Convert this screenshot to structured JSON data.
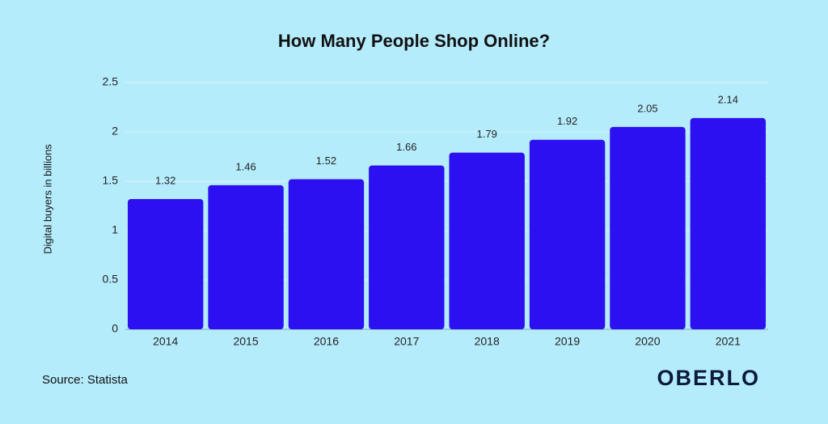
{
  "chart_data": {
    "type": "bar",
    "title": "How Many People Shop Online?",
    "y_label": "Digital buyers in billions",
    "categories": [
      "2014",
      "2015",
      "2016",
      "2017",
      "2018",
      "2019",
      "2020",
      "2021"
    ],
    "values": [
      1.32,
      1.46,
      1.52,
      1.66,
      1.79,
      1.92,
      2.05,
      2.14
    ],
    "color": "#2c10f2",
    "ylim": [
      0,
      2.5
    ],
    "yticks": [
      0,
      0.5,
      1,
      1.5,
      2,
      2.5
    ],
    "grid": true,
    "source": "Source: Statista",
    "brand": "OBERLO"
  }
}
